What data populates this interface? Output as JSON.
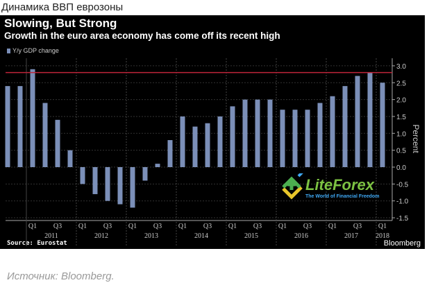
{
  "header": "Динамика ВВП еврозоны",
  "caption": "Источник: Bloomberg.",
  "watermark": {
    "name": "LiteForex",
    "tagline": "The World of Financial Freedom"
  },
  "chart_data": {
    "type": "bar",
    "title": "Slowing, But Strong",
    "subtitle": "Growth in the euro area economy has come off its recent high",
    "legend": "Y/y GDP change",
    "ylabel": "Percent",
    "ylim": [
      -1.6,
      3.3
    ],
    "yticks": [
      "3.0",
      "2.5",
      "2.0",
      "1.5",
      "1.0",
      "0.5",
      "0.0",
      "-0.5",
      "-1.0",
      "-1.5"
    ],
    "ytick_values": [
      3,
      2.5,
      2,
      1.5,
      1,
      0.5,
      0,
      -0.5,
      -1,
      -1.5
    ],
    "reference_line": 2.8,
    "categories": [
      "2010 Q3",
      "2010 Q4",
      "2011 Q1",
      "2011 Q2",
      "2011 Q3",
      "2011 Q4",
      "2012 Q1",
      "2012 Q2",
      "2012 Q3",
      "2012 Q4",
      "2013 Q1",
      "2013 Q2",
      "2013 Q3",
      "2013 Q4",
      "2014 Q1",
      "2014 Q2",
      "2014 Q3",
      "2014 Q4",
      "2015 Q1",
      "2015 Q2",
      "2015 Q3",
      "2015 Q4",
      "2016 Q1",
      "2016 Q2",
      "2016 Q3",
      "2016 Q4",
      "2017 Q1",
      "2017 Q2",
      "2017 Q3",
      "2017 Q4",
      "2018 Q1"
    ],
    "values": [
      2.4,
      2.4,
      2.9,
      1.9,
      1.4,
      0.5,
      -0.5,
      -0.8,
      -1.0,
      -1.1,
      -1.2,
      -0.4,
      0.1,
      0.8,
      1.5,
      1.2,
      1.3,
      1.5,
      1.8,
      2.0,
      2.0,
      2.0,
      1.7,
      1.7,
      1.7,
      1.9,
      2.1,
      2.4,
      2.7,
      2.8,
      2.5
    ],
    "years": [
      "2011",
      "2012",
      "2013",
      "2014",
      "2015",
      "2016",
      "2017",
      "2018"
    ],
    "quarter_labels": [
      "Q1",
      "Q3"
    ],
    "source": "Source: Eurostat",
    "brand": "Bloomberg",
    "colors": {
      "bar": "#7b8fb8",
      "ref": "#c0253a",
      "grid": "#333333"
    }
  }
}
